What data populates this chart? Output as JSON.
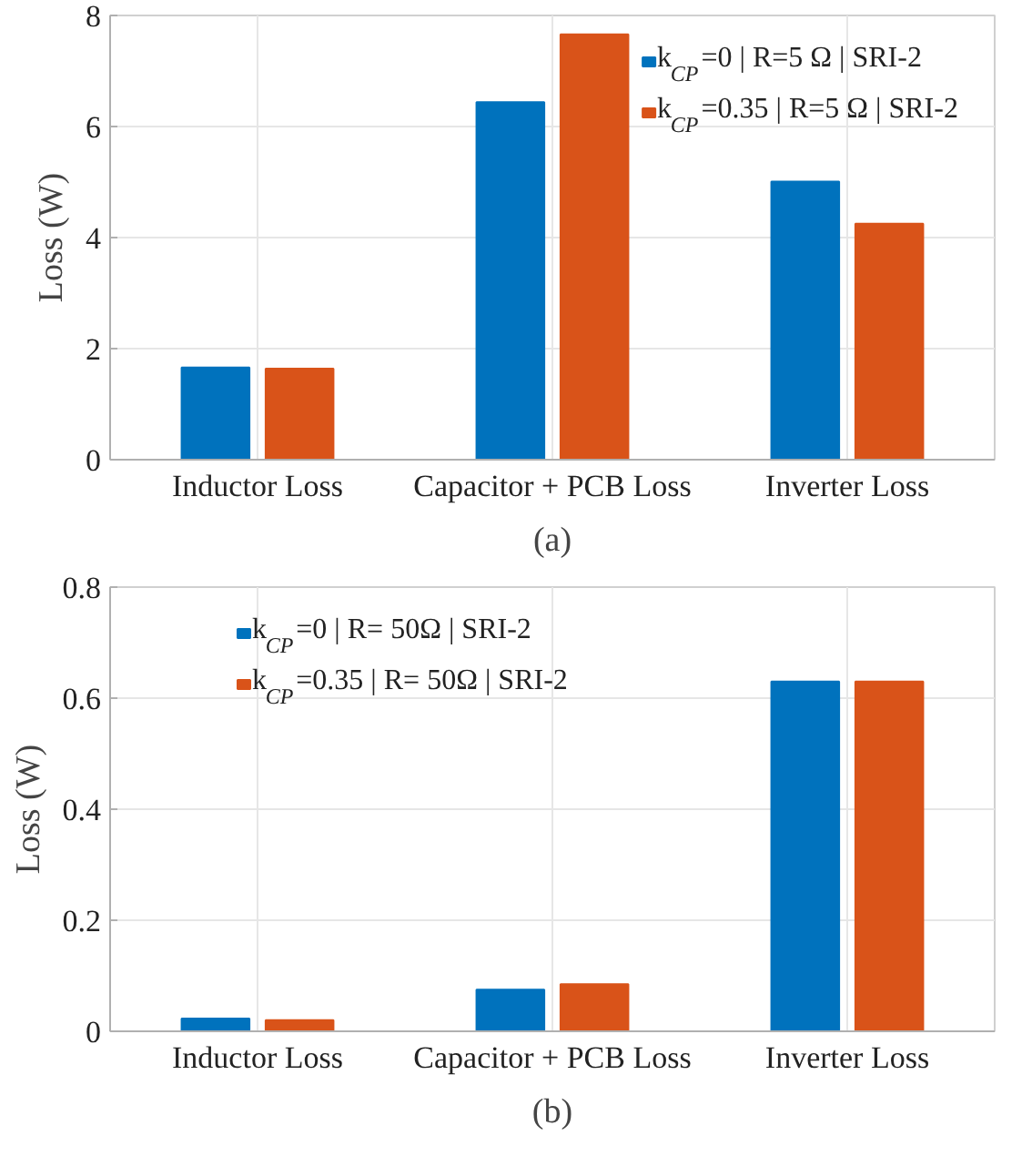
{
  "chart_data": [
    {
      "type": "bar",
      "title": "(a)",
      "ylabel": "Loss (W)",
      "categories": [
        "Inductor Loss",
        "Capacitor + PCB Loss",
        "Inverter Loss"
      ],
      "ylim": [
        0,
        8
      ],
      "yticks": [
        0,
        2,
        4,
        6,
        8
      ],
      "grid": true,
      "legend": "top right",
      "series": [
        {
          "name": "k$_{CP}$=0 | R=5 Ω | SRI-2",
          "color": "#0072bd",
          "values": [
            1.66,
            6.44,
            5.01
          ]
        },
        {
          "name": "k$_{CP}$=0.35 | R=5 Ω | SRI-2",
          "color": "#d95319",
          "values": [
            1.64,
            7.66,
            4.25
          ]
        }
      ]
    },
    {
      "type": "bar",
      "title": "(b)",
      "ylabel": "Loss (W)",
      "categories": [
        "Inductor Loss",
        "Capacitor + PCB Loss",
        "Inverter Loss"
      ],
      "ylim": [
        0,
        0.8
      ],
      "yticks": [
        0,
        0.2,
        0.4,
        0.6,
        0.8
      ],
      "grid": true,
      "legend": "top left",
      "series": [
        {
          "name": "k$_{CP}$=0 | R= 50Ω | SRI-2",
          "color": "#0072bd",
          "values": [
            0.023,
            0.075,
            0.63
          ]
        },
        {
          "name": "k$_{CP}$=0.35 | R= 50Ω | SRI-2",
          "color": "#d95319",
          "values": [
            0.02,
            0.085,
            0.63
          ]
        }
      ]
    }
  ]
}
